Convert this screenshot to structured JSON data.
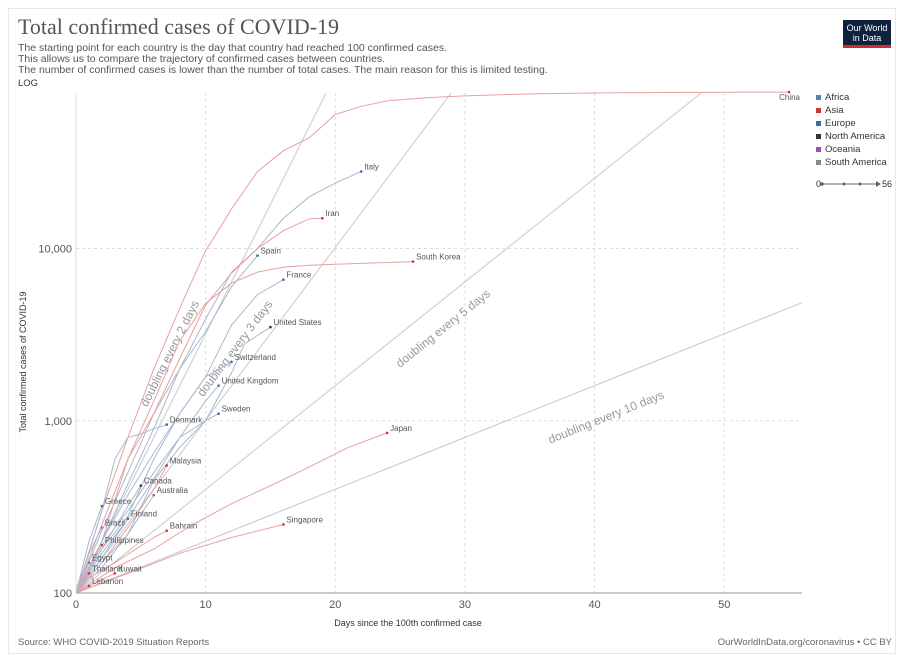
{
  "title": "Total confirmed cases of COVID-19",
  "subtitle_lines": [
    "The starting point for each country is the day that country had reached 100 confirmed cases.",
    "This allows us to compare the trajectory of confirmed cases between countries.",
    "The number of confirmed cases is lower than the number of total cases. The main reason for this is limited testing."
  ],
  "scale_label": "LOG",
  "logo": {
    "line1": "Our World",
    "line2": "in Data"
  },
  "source": "Source: WHO COVID-2019 Situation Reports",
  "license": "OurWorldInData.org/coronavirus • CC BY",
  "legend": [
    {
      "name": "Africa",
      "color": "#5a7fb0"
    },
    {
      "name": "Asia",
      "color": "#d13232"
    },
    {
      "name": "Europe",
      "color": "#3d6aa5"
    },
    {
      "name": "North America",
      "color": "#333344"
    },
    {
      "name": "Oceania",
      "color": "#9a4fb0"
    },
    {
      "name": "South America",
      "color": "#888888"
    }
  ],
  "timeline": {
    "start": "0",
    "end": "56"
  },
  "chart_data": {
    "type": "line",
    "title": "Total confirmed cases of COVID-19",
    "xlabel": "Days since the 100th confirmed case",
    "ylabel": "Total confirmed cases of COVID-19",
    "xlim": [
      0,
      56
    ],
    "ylim": [
      100,
      80000
    ],
    "yscale": "log",
    "x_ticks": [
      0,
      10,
      20,
      30,
      40,
      50
    ],
    "y_ticks": [
      {
        "v": 100,
        "label": "100"
      },
      {
        "v": 1000,
        "label": "1,000"
      },
      {
        "v": 10000,
        "label": "10,000"
      }
    ],
    "reference_lines": [
      {
        "label": "doubling every 2 days",
        "doubling": 2,
        "label_at": [
          7.5,
          2400
        ]
      },
      {
        "label": "doubling every 3 days",
        "doubling": 3,
        "label_at": [
          12.5,
          2550
        ]
      },
      {
        "label": "doubling every 5 days",
        "doubling": 5,
        "label_at": [
          28.5,
          3300
        ]
      },
      {
        "label": "doubling every 10 days",
        "doubling": 10,
        "label_at": [
          41,
          1000
        ]
      }
    ],
    "series": [
      {
        "name": "China",
        "region": "Asia",
        "x": [
          0,
          2,
          4,
          6,
          8,
          10,
          12,
          14,
          16,
          18,
          20,
          22,
          24,
          26,
          27,
          30,
          35,
          40,
          45,
          50,
          55
        ],
        "y": [
          100,
          300,
          800,
          2000,
          4500,
          9700,
          17000,
          28000,
          37000,
          44000,
          60000,
          67000,
          72000,
          74000,
          75000,
          77000,
          79000,
          80000,
          80500,
          80800,
          81000
        ]
      },
      {
        "name": "Italy",
        "region": "Europe",
        "x": [
          0,
          2,
          4,
          6,
          8,
          10,
          12,
          14,
          16,
          18,
          20,
          22
        ],
        "y": [
          100,
          230,
          500,
          1100,
          2000,
          3900,
          7300,
          10000,
          15000,
          20000,
          24000,
          28000
        ]
      },
      {
        "name": "Iran",
        "region": "Asia",
        "x": [
          0,
          2,
          4,
          6,
          8,
          10,
          12,
          14,
          16,
          18,
          19
        ],
        "y": [
          100,
          250,
          600,
          1100,
          2300,
          4700,
          7200,
          10000,
          12700,
          14900,
          15000
        ]
      },
      {
        "name": "Spain",
        "region": "Europe",
        "x": [
          0,
          2,
          4,
          6,
          8,
          10,
          12,
          14
        ],
        "y": [
          100,
          200,
          430,
          900,
          2000,
          3300,
          6000,
          9100
        ]
      },
      {
        "name": "South Korea",
        "region": "Asia",
        "x": [
          0,
          2,
          4,
          6,
          8,
          10,
          12,
          14,
          16,
          18,
          20,
          22,
          24,
          26
        ],
        "y": [
          100,
          200,
          600,
          1300,
          2900,
          4800,
          6300,
          7300,
          7800,
          8000,
          8100,
          8200,
          8300,
          8400
        ]
      },
      {
        "name": "France",
        "region": "Europe",
        "x": [
          0,
          2,
          4,
          6,
          8,
          10,
          12,
          14,
          16
        ],
        "y": [
          100,
          180,
          280,
          600,
          1100,
          1800,
          3600,
          5400,
          6600
        ]
      },
      {
        "name": "United States",
        "region": "North America",
        "x": [
          0,
          2,
          4,
          6,
          8,
          10,
          12,
          13,
          15
        ],
        "y": [
          100,
          140,
          220,
          450,
          700,
          1000,
          1900,
          2800,
          3500
        ]
      },
      {
        "name": "Switzerland",
        "region": "Europe",
        "x": [
          0,
          2,
          4,
          6,
          8,
          10,
          12
        ],
        "y": [
          100,
          200,
          370,
          650,
          1100,
          1800,
          2200
        ]
      },
      {
        "name": "United Kingdom",
        "region": "Europe",
        "x": [
          0,
          2,
          4,
          6,
          8,
          10,
          11
        ],
        "y": [
          100,
          160,
          270,
          460,
          800,
          1300,
          1600
        ]
      },
      {
        "name": "Denmark",
        "region": "Europe",
        "x": [
          0,
          2,
          3,
          4,
          5,
          6,
          7
        ],
        "y": [
          100,
          300,
          600,
          800,
          840,
          900,
          950
        ]
      },
      {
        "name": "Sweden",
        "region": "Europe",
        "x": [
          0,
          2,
          4,
          6,
          8,
          10,
          11
        ],
        "y": [
          100,
          190,
          300,
          500,
          800,
          1000,
          1100
        ]
      },
      {
        "name": "Japan",
        "region": "Asia",
        "x": [
          0,
          3,
          6,
          9,
          12,
          15,
          18,
          21,
          24
        ],
        "y": [
          100,
          140,
          180,
          250,
          330,
          420,
          540,
          700,
          850
        ]
      },
      {
        "name": "Malaysia",
        "region": "Asia",
        "x": [
          0,
          2,
          4,
          6,
          7
        ],
        "y": [
          100,
          150,
          240,
          400,
          550
        ]
      },
      {
        "name": "Canada",
        "region": "North America",
        "x": [
          0,
          2,
          4,
          5
        ],
        "y": [
          100,
          180,
          320,
          420
        ]
      },
      {
        "name": "Australia",
        "region": "Oceania",
        "x": [
          0,
          2,
          4,
          6
        ],
        "y": [
          100,
          150,
          220,
          370
        ]
      },
      {
        "name": "Greece",
        "region": "Europe",
        "x": [
          0,
          1,
          2
        ],
        "y": [
          100,
          200,
          320
        ]
      },
      {
        "name": "Finland",
        "region": "Europe",
        "x": [
          0,
          2,
          4
        ],
        "y": [
          100,
          170,
          270
        ]
      },
      {
        "name": "Brazil",
        "region": "South America",
        "x": [
          0,
          1,
          2
        ],
        "y": [
          100,
          170,
          240
        ]
      },
      {
        "name": "Bahrain",
        "region": "Asia",
        "x": [
          0,
          3,
          6,
          7
        ],
        "y": [
          110,
          150,
          210,
          230
        ]
      },
      {
        "name": "Singapore",
        "region": "Asia",
        "x": [
          0,
          4,
          8,
          12,
          16
        ],
        "y": [
          100,
          130,
          170,
          210,
          250
        ]
      },
      {
        "name": "Philippines",
        "region": "Asia",
        "x": [
          0,
          1,
          2
        ],
        "y": [
          100,
          140,
          190
        ]
      },
      {
        "name": "Egypt",
        "region": "Africa",
        "x": [
          0,
          1
        ],
        "y": [
          100,
          150
        ]
      },
      {
        "name": "Thailand",
        "region": "Asia",
        "x": [
          0,
          1
        ],
        "y": [
          100,
          130
        ]
      },
      {
        "name": "Kuwait",
        "region": "Asia",
        "x": [
          0,
          2,
          3
        ],
        "y": [
          100,
          120,
          130
        ]
      },
      {
        "name": "Lebanon",
        "region": "Asia",
        "x": [
          0,
          1
        ],
        "y": [
          100,
          110
        ]
      }
    ]
  }
}
